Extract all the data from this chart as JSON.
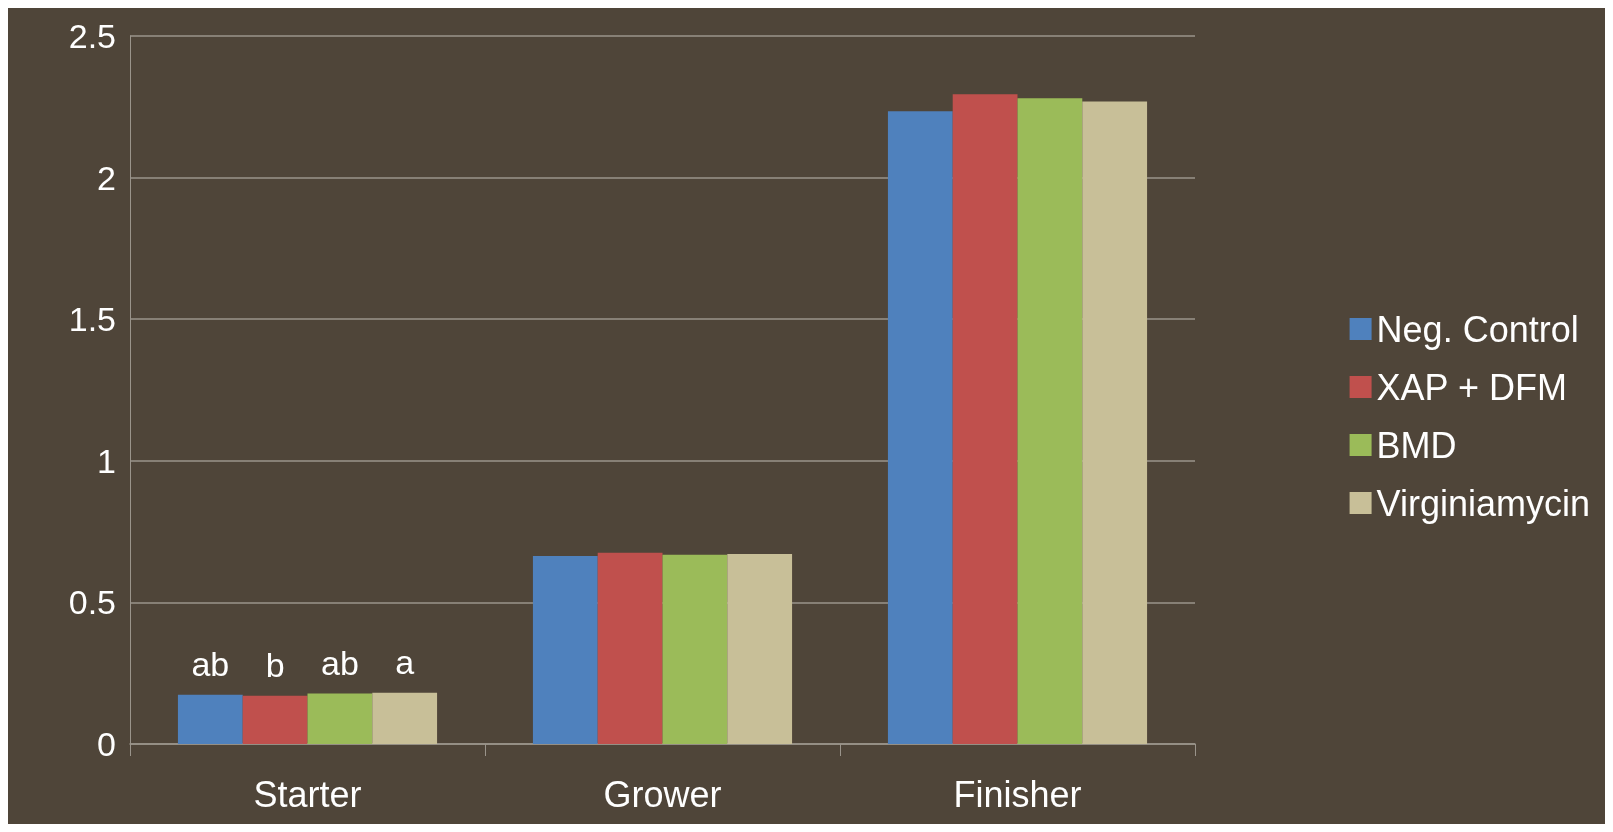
{
  "chart_data": {
    "type": "bar",
    "categories": [
      "Starter",
      "Grower",
      "Finisher"
    ],
    "series": [
      {
        "name": "Neg. Control",
        "color": "#4f81bd",
        "values": [
          0.174,
          0.664,
          2.234
        ],
        "value_labels": [
          "ab",
          null,
          null
        ]
      },
      {
        "name": "XAP + DFM",
        "color": "#c0504d",
        "values": [
          0.17,
          0.675,
          2.294
        ],
        "value_labels": [
          "b",
          null,
          null
        ]
      },
      {
        "name": "BMD",
        "color": "#9bbb59",
        "values": [
          0.178,
          0.668,
          2.28
        ],
        "value_labels": [
          "ab",
          null,
          null
        ]
      },
      {
        "name": "Virginiamycin",
        "color": "#c8bf98",
        "values": [
          0.181,
          0.671,
          2.269
        ],
        "value_labels": [
          "a",
          null,
          null
        ]
      }
    ],
    "ylim": [
      0,
      2.5
    ],
    "yticks": [
      0,
      0.5,
      1,
      1.5,
      2,
      2.5
    ],
    "grid": "y",
    "legend": "right"
  }
}
